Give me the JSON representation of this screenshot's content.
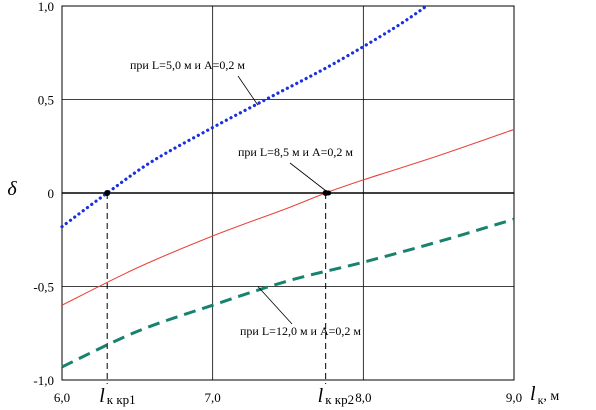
{
  "chart_data": {
    "type": "line",
    "ylabel": "δ",
    "xlabel": {
      "main": "l",
      "sub": "к",
      "unit": ", м"
    },
    "xlim": [
      6.0,
      9.0
    ],
    "ylim": [
      -1.0,
      1.0
    ],
    "x_ticks": [
      {
        "v": 6.0,
        "label": "6,0"
      },
      {
        "v": 7.0,
        "label": "7,0"
      },
      {
        "v": 8.0,
        "label": "8,0"
      },
      {
        "v": 9.0,
        "label": "9,0"
      }
    ],
    "y_ticks": [
      {
        "v": 1.0,
        "label": "1,0"
      },
      {
        "v": 0.5,
        "label": "0,5"
      },
      {
        "v": 0.0,
        "label": "0"
      },
      {
        "v": -0.5,
        "label": "-0,5"
      },
      {
        "v": -1.0,
        "label": "-1,0"
      }
    ],
    "vertical_gridlines": [
      7.0,
      8.0
    ],
    "horizontal_gridlines": [
      0.5,
      0.0,
      -0.5
    ],
    "grid": true,
    "series": [
      {
        "name": "при L=5,0 м и A=0,2 м",
        "style": "dotted",
        "color": "#1a2fe0",
        "x": [
          6.0,
          6.3,
          6.6,
          7.0,
          7.4,
          7.8,
          8.2,
          8.42
        ],
        "y": [
          -0.18,
          0.0,
          0.17,
          0.35,
          0.52,
          0.69,
          0.88,
          1.0
        ]
      },
      {
        "name": "при L=8,5 м и A=0,2 м",
        "style": "solid",
        "color": "#e8463c",
        "x": [
          6.0,
          6.5,
          7.0,
          7.5,
          7.75,
          8.0,
          8.5,
          9.0
        ],
        "y": [
          -0.6,
          -0.4,
          -0.23,
          -0.08,
          0.0,
          0.07,
          0.2,
          0.34
        ]
      },
      {
        "name": "при L=12,0 м и A=0,2 м",
        "style": "dashed",
        "color": "#17826e",
        "x": [
          6.0,
          6.5,
          7.0,
          7.5,
          8.0,
          8.5,
          9.0
        ],
        "y": [
          -0.93,
          -0.74,
          -0.6,
          -0.47,
          -0.37,
          -0.26,
          -0.14
        ]
      }
    ],
    "annotations": [
      {
        "text": "при L=5,0 м и A=0,2 м",
        "target": [
          7.3,
          0.47
        ]
      },
      {
        "text": "при L=8,5 м и A=0,2 м",
        "target": [
          7.77,
          0.0
        ]
      },
      {
        "text": "при L=12,0 м и A=0,2 м",
        "target": [
          7.3,
          -0.5
        ]
      }
    ],
    "critical_points": [
      {
        "x": 6.3,
        "label_main": "l",
        "label_sub": "к кр1"
      },
      {
        "x": 7.75,
        "label_main": "l",
        "label_sub": "к кр2"
      }
    ]
  }
}
